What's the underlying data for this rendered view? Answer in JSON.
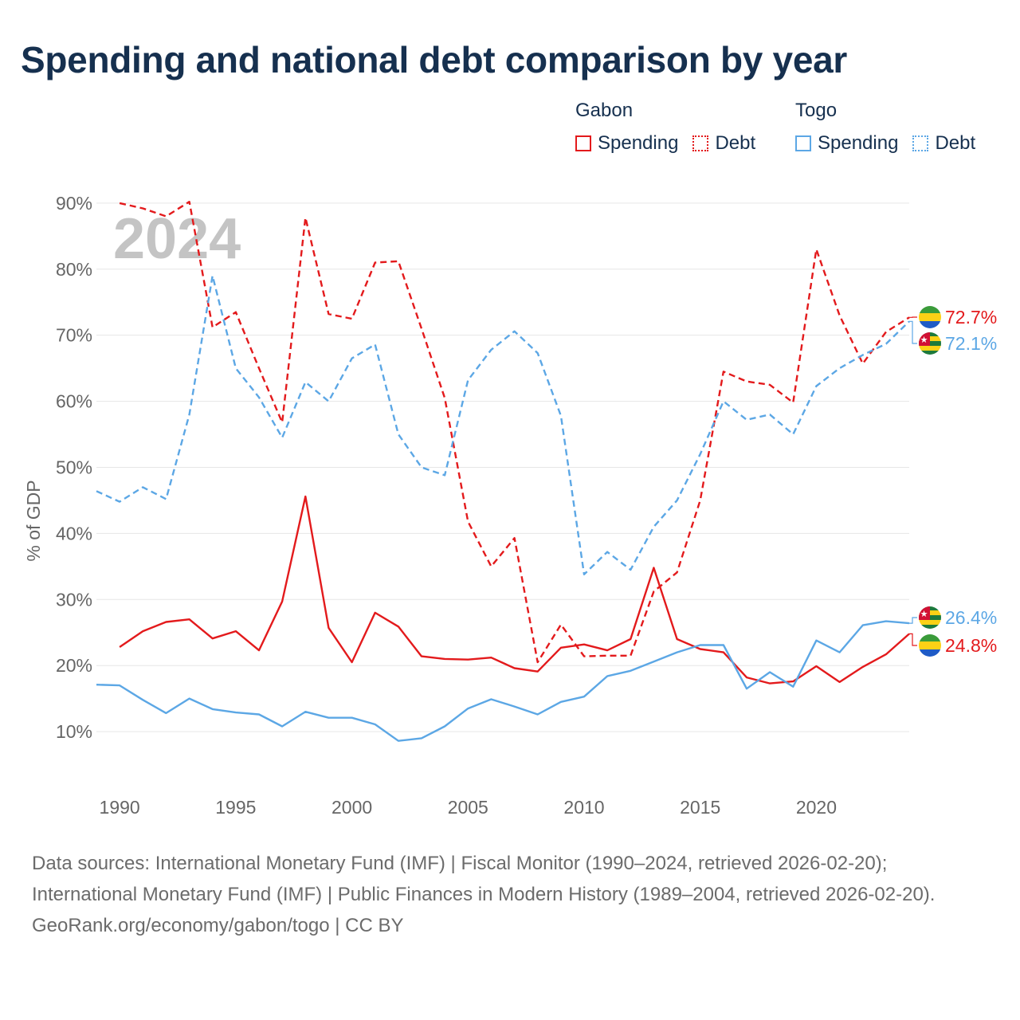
{
  "title": "Spending and national debt comparison by year",
  "legend": [
    {
      "country": "Gabon",
      "color": "#e31a1c",
      "items": [
        {
          "label": "Spending",
          "style": "solid"
        },
        {
          "label": "Debt",
          "style": "dotted"
        }
      ]
    },
    {
      "country": "Togo",
      "color": "#5ca7e5",
      "items": [
        {
          "label": "Spending",
          "style": "solid"
        },
        {
          "label": "Debt",
          "style": "dotted"
        }
      ]
    }
  ],
  "footer": {
    "sources": "Data sources: International Monetary Fund (IMF) | Fiscal Monitor (1990–2024, retrieved 2026-02-20); International Monetary Fund (IMF) | Public Finances in Modern History (1989–2004, retrieved 2026-02-20).",
    "credit": "GeoRank.org/economy/gabon/togo | CC BY"
  },
  "chart_data": {
    "type": "line",
    "year_label": "2024",
    "ylabel": "% of GDP",
    "xlabel": "",
    "xlim": [
      1989,
      2024
    ],
    "ylim": [
      0,
      93
    ],
    "xticks": [
      1990,
      1995,
      2000,
      2005,
      2010,
      2015,
      2020
    ],
    "yticks": [
      10,
      20,
      30,
      40,
      50,
      60,
      70,
      80,
      90
    ],
    "ytick_labels": [
      "10%",
      "20%",
      "30%",
      "40%",
      "50%",
      "60%",
      "70%",
      "80%",
      "90%"
    ],
    "grid": true,
    "colors": {
      "Gabon": "#e31a1c",
      "Togo": "#5ca7e5"
    },
    "series": [
      {
        "name": "Gabon Debt",
        "country": "Gabon",
        "style": "dashed",
        "x0": 1990,
        "values": [
          90.0,
          89.2,
          88.0,
          90.2,
          71.2,
          73.5,
          65.0,
          56.8,
          87.8,
          73.2,
          72.5,
          81.0,
          81.2,
          71.0,
          60.5,
          41.8,
          35.0,
          39.3,
          20.5,
          26.2,
          21.4,
          21.5,
          21.5,
          31.2,
          34.1,
          45.0,
          64.5,
          63.0,
          62.5,
          59.8,
          83.0,
          73.0,
          65.7,
          70.5,
          72.7
        ]
      },
      {
        "name": "Togo Debt",
        "country": "Togo",
        "style": "dashed",
        "x0": 1989,
        "values": [
          46.4,
          44.8,
          47.0,
          45.2,
          58.0,
          79.0,
          65.0,
          60.6,
          54.5,
          62.9,
          60.0,
          66.5,
          68.6,
          55.0,
          50.0,
          48.8,
          63.2,
          67.8,
          70.6,
          67.3,
          57.8,
          33.8,
          37.2,
          34.5,
          41.0,
          45.0,
          52.0,
          60.0,
          57.2,
          58.0,
          55.0,
          62.3,
          65.0,
          67.0,
          68.7,
          72.1
        ]
      },
      {
        "name": "Gabon Spending",
        "country": "Gabon",
        "style": "solid",
        "x0": 1990,
        "values": [
          22.8,
          25.2,
          26.6,
          27.0,
          24.1,
          25.2,
          22.3,
          29.7,
          45.6,
          25.7,
          20.5,
          28.0,
          25.9,
          21.4,
          21.0,
          20.9,
          21.2,
          19.6,
          19.1,
          22.7,
          23.2,
          22.3,
          24.0,
          34.8,
          24.0,
          22.5,
          22.0,
          18.2,
          17.3,
          17.6,
          19.9,
          17.5,
          19.8,
          21.7,
          24.8
        ]
      },
      {
        "name": "Togo Spending",
        "country": "Togo",
        "style": "solid",
        "x0": 1989,
        "values": [
          17.1,
          17.0,
          14.8,
          12.8,
          15.0,
          13.4,
          12.9,
          12.6,
          10.8,
          13.0,
          12.1,
          12.1,
          11.1,
          8.6,
          9.0,
          10.8,
          13.5,
          14.9,
          13.8,
          12.6,
          14.5,
          15.3,
          18.4,
          19.2,
          20.6,
          22.0,
          23.1,
          23.1,
          16.5,
          19.0,
          16.8,
          23.8,
          22.0,
          26.1,
          26.7,
          26.4
        ]
      }
    ],
    "end_labels": [
      {
        "text": "72.7%",
        "country": "Gabon",
        "flag": "gabon"
      },
      {
        "text": "72.1%",
        "country": "Togo",
        "flag": "togo"
      },
      {
        "text": "26.4%",
        "country": "Togo",
        "flag": "togo"
      },
      {
        "text": "24.8%",
        "country": "Gabon",
        "flag": "gabon"
      }
    ]
  }
}
